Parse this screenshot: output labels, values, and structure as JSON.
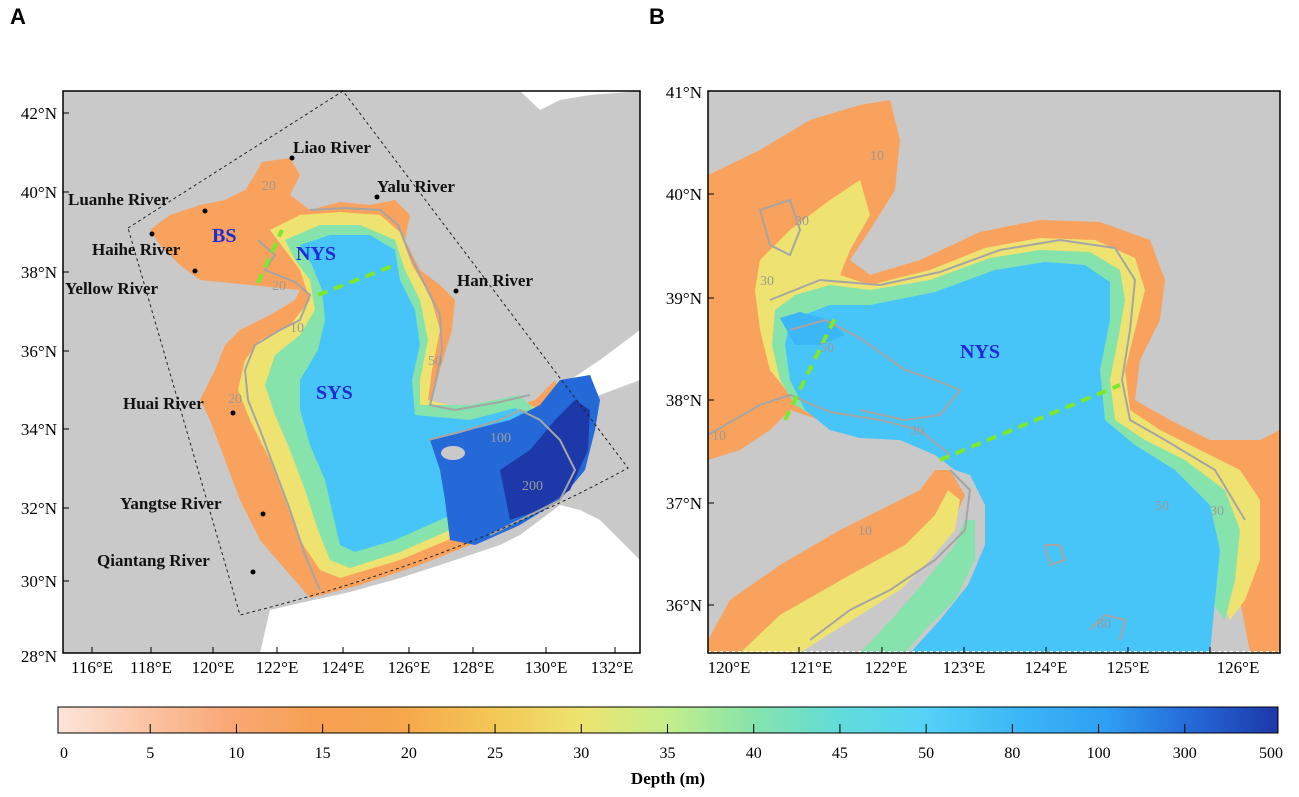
{
  "panels": {
    "a": {
      "letter": "A",
      "lat_ticks": [
        "42°N",
        "40°N",
        "38°N",
        "36°N",
        "34°N",
        "32°N",
        "30°N",
        "28°N"
      ],
      "lon_ticks": [
        "116°E",
        "118°E",
        "120°E",
        "122°E",
        "124°E",
        "126°E",
        "128°E",
        "130°E",
        "132°E"
      ],
      "rivers": [
        "Liao River",
        "Yalu River",
        "Luanhe River",
        "Haihe River",
        "Yellow River",
        "Han River",
        "Huai River",
        "Yangtse River",
        "Qiantang River"
      ],
      "regions": [
        "BS",
        "NYS",
        "SYS"
      ],
      "contour_labels": [
        "20",
        "20",
        "10",
        "20",
        "50",
        "100",
        "200"
      ]
    },
    "b": {
      "letter": "B",
      "lat_ticks": [
        "41°N",
        "40°N",
        "39°N",
        "38°N",
        "37°N",
        "36°N"
      ],
      "lon_ticks": [
        "120°E",
        "121°E",
        "122°E",
        "123°E",
        "124°E",
        "125°E",
        "126°E"
      ],
      "regions": [
        "NYS"
      ],
      "contour_labels": [
        "10",
        "30",
        "30",
        "50",
        "10",
        "30",
        "10",
        "50",
        "30",
        "80"
      ]
    }
  },
  "colorbar": {
    "title": "Depth (m)",
    "tick_labels": [
      "0",
      "5",
      "10",
      "15",
      "20",
      "25",
      "30",
      "35",
      "40",
      "45",
      "50",
      "80",
      "100",
      "300",
      "500"
    ],
    "colors": [
      "#fde6da",
      "#fcd3bd",
      "#fbbc98",
      "#f9a877",
      "#f8a25e",
      "#f6a64c",
      "#f5b64c",
      "#f2d05a",
      "#eee370",
      "#d8ef85",
      "#a8ec96",
      "#7fe2b0",
      "#62dcda",
      "#5ad6f5",
      "#48c5f8",
      "#3bb3f6",
      "#2f9ff2",
      "#2a86ea",
      "#2568d8",
      "#1f4cbf",
      "#1d38a8"
    ],
    "colors_note": "colormap from shallow (light peach) to deep (dark blue)"
  },
  "colors": {
    "land": "#c9c9c9",
    "contour": "#a5a5a5",
    "section_line": "#7ee82a",
    "region_label": "#1e2bd6"
  }
}
